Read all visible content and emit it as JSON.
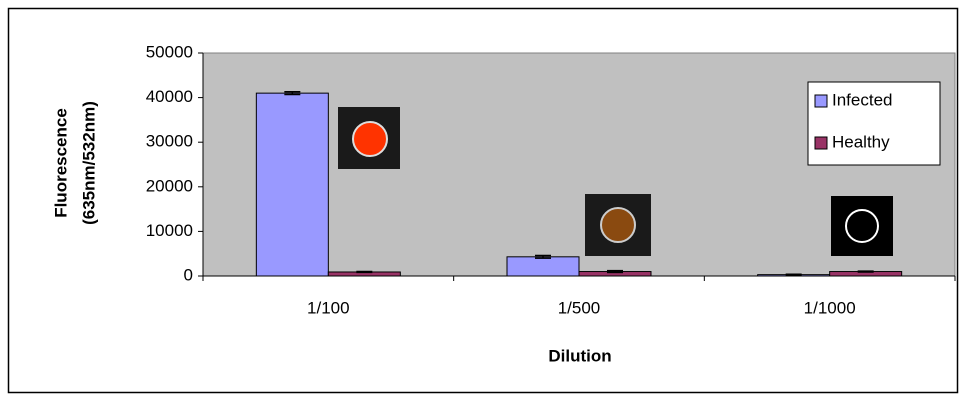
{
  "chart_data": {
    "type": "bar",
    "xlabel": "Dilution",
    "ylabel": [
      "Fluorescence",
      "(635nm/532nm)"
    ],
    "categories": [
      "1/100",
      "1/500",
      "1/1000"
    ],
    "series": [
      {
        "name": "Infected",
        "color": "#9999ff",
        "values": [
          41000,
          4300,
          300
        ],
        "errors": [
          300,
          300,
          100
        ]
      },
      {
        "name": "Healthy",
        "color": "#993366",
        "values": [
          900,
          1000,
          1000
        ],
        "errors": [
          100,
          200,
          100
        ]
      }
    ],
    "ylim": [
      0,
      50000
    ],
    "yticks": [
      0,
      10000,
      20000,
      30000,
      40000,
      50000
    ],
    "grid": false,
    "legend": "right",
    "plot_background": "#c0c0c0"
  }
}
